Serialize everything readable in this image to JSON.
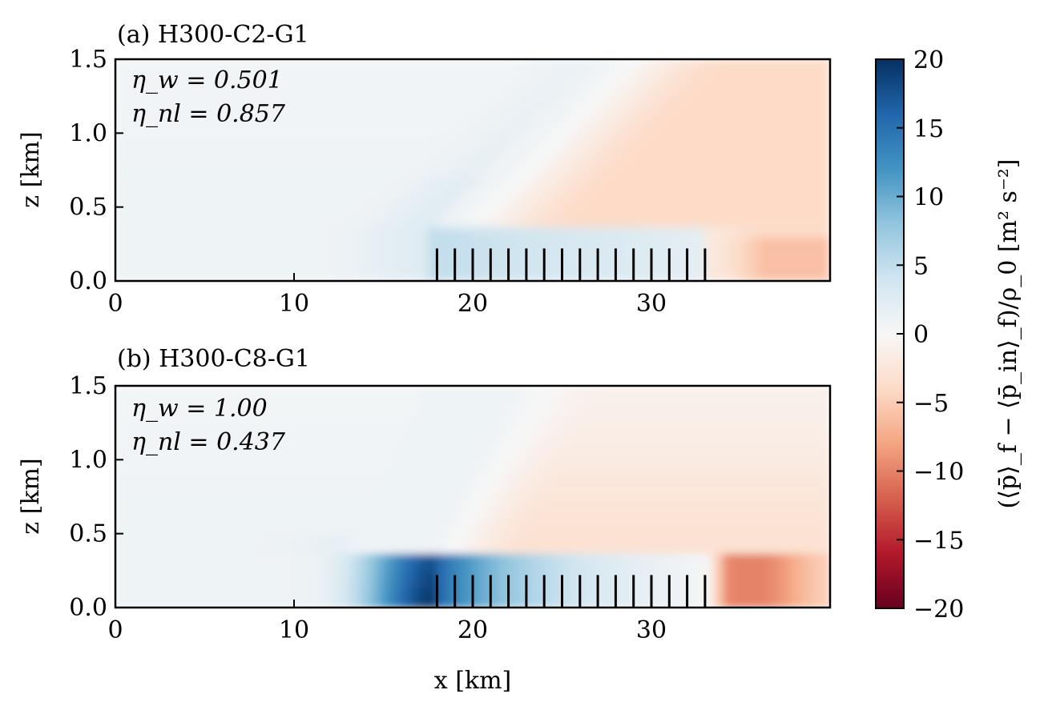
{
  "chart_data": [
    {
      "type": "heatmap",
      "title": "(a) H300-C2-G1",
      "xlabel": "",
      "ylabel": "z [km]",
      "xlim": [
        0,
        40
      ],
      "ylim": [
        0,
        1.5
      ],
      "xticks": [
        0,
        10,
        20,
        30
      ],
      "xtick_labels": [
        "0",
        "10",
        "20",
        "30"
      ],
      "yticks": [
        0.0,
        0.5,
        1.0,
        1.5
      ],
      "ytick_labels": [
        "0.0",
        "0.5",
        "1.0",
        "1.5"
      ],
      "annotations": [
        "η_w = 0.501",
        "η_nl = 0.857"
      ],
      "turbine_x": [
        18,
        19,
        20,
        21,
        22,
        23,
        24,
        25,
        26,
        27,
        28,
        29,
        30,
        31,
        32,
        33
      ],
      "turbine_top": 0.22,
      "field_summary": {
        "upstream_value": 1,
        "farm_layer_value": 5,
        "farm_layer_top": 0.38,
        "downstream_aloft_value": -4,
        "downstream_near_surface_value": -6
      }
    },
    {
      "type": "heatmap",
      "title": "(b) H300-C8-G1",
      "xlabel": "x [km]",
      "ylabel": "z [km]",
      "xlim": [
        0,
        40
      ],
      "ylim": [
        0,
        1.5
      ],
      "xticks": [
        0,
        10,
        20,
        30
      ],
      "xtick_labels": [
        "0",
        "10",
        "20",
        "30"
      ],
      "yticks": [
        0.0,
        0.5,
        1.0,
        1.5
      ],
      "ytick_labels": [
        "0.0",
        "0.5",
        "1.0",
        "1.5"
      ],
      "annotations": [
        "η_w = 1.00",
        "η_nl = 0.437"
      ],
      "turbine_x": [
        18,
        19,
        20,
        21,
        22,
        23,
        24,
        25,
        26,
        27,
        28,
        29,
        30,
        31,
        32,
        33
      ],
      "turbine_top": 0.22,
      "field_summary": {
        "upstream_value": 1,
        "peak_value": 20,
        "peak_x": 18,
        "farm_layer_value": 7,
        "farm_layer_top": 0.38,
        "downstream_aloft_value": -3,
        "downstream_near_surface_value": -10
      }
    }
  ],
  "colorbar": {
    "label": "(⟨p̄⟩_f − ⟨p̄_in⟩_f)/ρ_0 [m² s⁻²]",
    "range": [
      -20,
      20
    ],
    "ticks": [
      20,
      15,
      10,
      5,
      0,
      -5,
      -10,
      -15,
      -20
    ],
    "tick_labels": [
      "20",
      "15",
      "10",
      "5",
      "0",
      "−5",
      "−10",
      "−15",
      "−20"
    ],
    "colormap": "RdBu (reversed)",
    "stops": [
      "#67001f",
      "#b2182b",
      "#d6604d",
      "#f4a582",
      "#fddbc7",
      "#f7f7f7",
      "#d1e5f0",
      "#92c5de",
      "#4393c3",
      "#2166ac",
      "#053061"
    ]
  }
}
